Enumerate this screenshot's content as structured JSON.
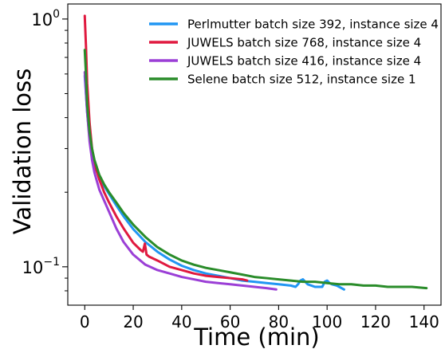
{
  "chart_data": {
    "type": "line",
    "title": "",
    "xlabel": "Time (min)",
    "ylabel": "Validation loss",
    "x_scale": "linear",
    "y_scale": "log",
    "xlim": [
      -7,
      147
    ],
    "ylim": [
      0.07,
      1.15
    ],
    "x_ticks": [
      "0",
      "20",
      "40",
      "60",
      "80",
      "100",
      "120",
      "140"
    ],
    "x_tick_values": [
      0,
      20,
      40,
      60,
      80,
      100,
      120,
      140
    ],
    "y_major_ticks": [
      {
        "value": 1.0,
        "base": "10",
        "exp": "0"
      },
      {
        "value": 0.1,
        "base": "10",
        "exp": "−1"
      }
    ],
    "y_minor_ticks": [
      0.08,
      0.09,
      0.2,
      0.3,
      0.4,
      0.5,
      0.6,
      0.7,
      0.8,
      0.9
    ],
    "grid": false,
    "legend_position": "top-right",
    "series": [
      {
        "name": "Perlmutter batch size 392, instance size 4",
        "color": "#2196f3",
        "x": [
          0,
          1,
          2,
          3,
          4,
          6,
          8,
          10,
          13,
          16,
          20,
          25,
          30,
          35,
          40,
          45,
          50,
          55,
          60,
          65,
          70,
          75,
          80,
          85,
          87,
          88,
          89,
          90,
          92,
          95,
          98,
          99,
          100,
          101,
          102,
          104,
          107
        ],
        "y": [
          0.59,
          0.42,
          0.33,
          0.28,
          0.255,
          0.23,
          0.212,
          0.197,
          0.177,
          0.16,
          0.142,
          0.126,
          0.115,
          0.107,
          0.101,
          0.097,
          0.094,
          0.092,
          0.09,
          0.088,
          0.087,
          0.086,
          0.085,
          0.084,
          0.083,
          0.085,
          0.088,
          0.089,
          0.085,
          0.083,
          0.083,
          0.087,
          0.088,
          0.086,
          0.085,
          0.084,
          0.081
        ]
      },
      {
        "name": "JUWELS batch size 768, instance size 4",
        "color": "#e0193f",
        "x": [
          0,
          0.5,
          1,
          2,
          3,
          4,
          6,
          8,
          10,
          13,
          16,
          20,
          23,
          24,
          24.8,
          25.5,
          26.5,
          30,
          35,
          40,
          45,
          50,
          55,
          60,
          65,
          67
        ],
        "y": [
          1.03,
          0.78,
          0.55,
          0.38,
          0.3,
          0.26,
          0.225,
          0.2,
          0.182,
          0.16,
          0.143,
          0.125,
          0.117,
          0.115,
          0.124,
          0.112,
          0.11,
          0.106,
          0.1,
          0.097,
          0.094,
          0.092,
          0.091,
          0.09,
          0.089,
          0.088
        ]
      },
      {
        "name": "JUWELS batch size 416, instance size 4",
        "color": "#9b3fd6",
        "x": [
          0,
          1,
          2,
          3,
          4,
          6,
          8,
          10,
          13,
          16,
          20,
          25,
          30,
          35,
          40,
          45,
          50,
          55,
          60,
          65,
          70,
          75,
          79
        ],
        "y": [
          0.61,
          0.42,
          0.32,
          0.27,
          0.24,
          0.205,
          0.185,
          0.167,
          0.143,
          0.126,
          0.112,
          0.102,
          0.097,
          0.094,
          0.091,
          0.089,
          0.087,
          0.086,
          0.085,
          0.084,
          0.083,
          0.082,
          0.081
        ]
      },
      {
        "name": "Selene batch size 512, instance size 1",
        "color": "#2a8c2a",
        "x": [
          0,
          0.5,
          1,
          2,
          3,
          4,
          6,
          8,
          10,
          13,
          16,
          20,
          25,
          30,
          35,
          40,
          45,
          50,
          55,
          60,
          65,
          70,
          75,
          80,
          85,
          90,
          95,
          100,
          105,
          110,
          115,
          120,
          125,
          130,
          135,
          141
        ],
        "y": [
          0.75,
          0.6,
          0.45,
          0.35,
          0.3,
          0.27,
          0.235,
          0.215,
          0.2,
          0.182,
          0.165,
          0.148,
          0.132,
          0.12,
          0.112,
          0.106,
          0.102,
          0.099,
          0.097,
          0.095,
          0.093,
          0.091,
          0.09,
          0.089,
          0.088,
          0.087,
          0.087,
          0.086,
          0.085,
          0.085,
          0.084,
          0.084,
          0.083,
          0.083,
          0.083,
          0.082
        ]
      }
    ]
  }
}
